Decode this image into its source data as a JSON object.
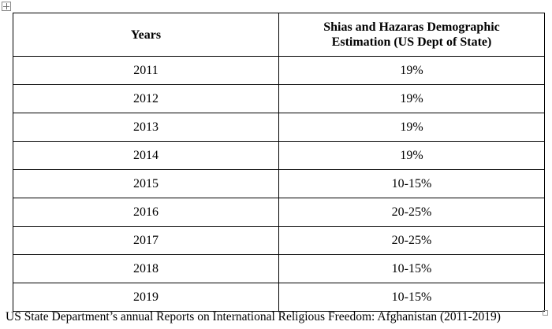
{
  "table": {
    "headers": [
      "Years",
      "Shias and Hazaras Demographic Estimation (US Dept of State)"
    ],
    "rows": [
      [
        "2011",
        "19%"
      ],
      [
        "2012",
        "19%"
      ],
      [
        "2013",
        "19%"
      ],
      [
        "2014",
        "19%"
      ],
      [
        "2015",
        "10-15%"
      ],
      [
        "2016",
        "20-25%"
      ],
      [
        "2017",
        "20-25%"
      ],
      [
        "2018",
        "10-15%"
      ],
      [
        "2019",
        "10-15%"
      ]
    ]
  },
  "caption": "US State Department’s annual Reports on International Religious Freedom: Afghanistan (2011-2019)"
}
